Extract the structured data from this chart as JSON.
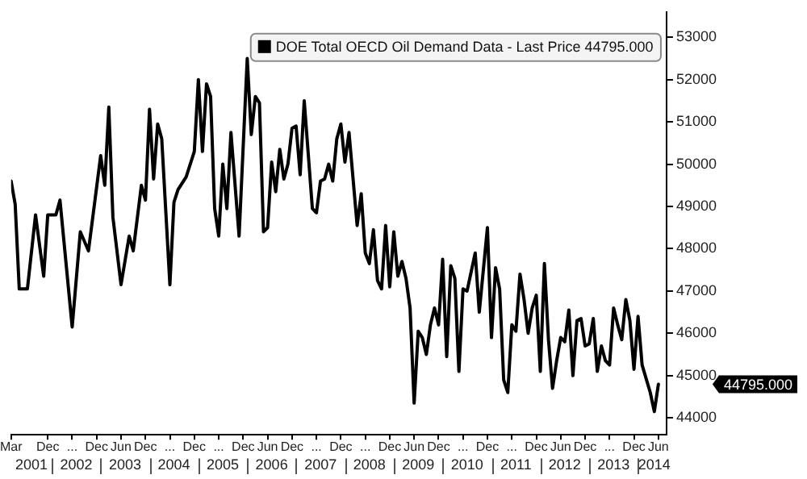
{
  "chart_data": {
    "type": "line",
    "x": [
      "2001-03",
      "2001-04",
      "2001-05",
      "2001-07",
      "2001-09",
      "2001-11",
      "2001-12",
      "2002-02",
      "2002-03",
      "2002-06",
      "2002-08",
      "2002-10",
      "2003-01",
      "2003-02",
      "2003-03",
      "2003-04",
      "2003-06",
      "2003-08",
      "2003-09",
      "2003-11",
      "2003-12",
      "2004-01",
      "2004-02",
      "2004-03",
      "2004-04",
      "2004-06",
      "2004-07",
      "2004-08",
      "2004-10",
      "2004-12",
      "2005-01",
      "2005-02",
      "2005-03",
      "2005-04",
      "2005-05",
      "2005-06",
      "2005-07",
      "2005-08",
      "2005-09",
      "2005-11",
      "2006-01",
      "2006-02",
      "2006-03",
      "2006-04",
      "2006-05",
      "2006-06",
      "2006-07",
      "2006-08",
      "2006-09",
      "2006-10",
      "2006-11",
      "2006-12",
      "2007-01",
      "2007-02",
      "2007-03",
      "2007-05",
      "2007-06",
      "2007-07",
      "2007-08",
      "2007-09",
      "2007-10",
      "2007-11",
      "2007-12",
      "2008-01",
      "2008-02",
      "2008-04",
      "2008-05",
      "2008-06",
      "2008-07",
      "2008-08",
      "2008-09",
      "2008-10",
      "2008-11",
      "2008-12",
      "2009-01",
      "2009-02",
      "2009-03",
      "2009-04",
      "2009-05",
      "2009-06",
      "2009-07",
      "2009-08",
      "2009-09",
      "2009-10",
      "2009-11",
      "2009-12",
      "2010-01",
      "2010-02",
      "2010-03",
      "2010-04",
      "2010-05",
      "2010-06",
      "2010-07",
      "2010-09",
      "2010-10",
      "2010-12",
      "2011-01",
      "2011-02",
      "2011-03",
      "2011-04",
      "2011-05",
      "2011-06",
      "2011-07",
      "2011-08",
      "2011-09",
      "2011-10",
      "2011-11",
      "2011-12",
      "2012-01",
      "2012-02",
      "2012-03",
      "2012-04",
      "2012-05",
      "2012-06",
      "2012-07",
      "2012-08",
      "2012-09",
      "2012-10",
      "2012-11",
      "2012-12",
      "2013-01",
      "2013-02",
      "2013-03",
      "2013-04",
      "2013-05",
      "2013-06",
      "2013-07",
      "2013-08",
      "2013-09",
      "2013-10",
      "2013-11",
      "2013-12",
      "2014-01",
      "2014-02",
      "2014-04",
      "2014-05",
      "2014-06"
    ],
    "series": [
      {
        "name": "DOE Total OECD Oil Demand Data - Last Price 44795.000",
        "color": "#000000",
        "values": [
          49600,
          49050,
          47050,
          47050,
          48800,
          47350,
          48800,
          48800,
          49150,
          46150,
          48400,
          47950,
          50200,
          49500,
          51350,
          48750,
          47150,
          48300,
          47950,
          49500,
          49150,
          51300,
          49650,
          50950,
          50600,
          47150,
          49100,
          49400,
          49700,
          50300,
          52000,
          50300,
          51900,
          51600,
          48950,
          48300,
          50000,
          48950,
          50750,
          48300,
          52500,
          50700,
          51600,
          51450,
          48400,
          48500,
          50050,
          49350,
          50350,
          49650,
          50000,
          50850,
          50900,
          49750,
          51500,
          48950,
          48850,
          49600,
          49650,
          50000,
          49600,
          50600,
          50950,
          50050,
          50750,
          48550,
          49300,
          47900,
          47650,
          48450,
          47250,
          47050,
          48550,
          47100,
          48400,
          47350,
          47700,
          47300,
          46600,
          44350,
          46050,
          45900,
          45500,
          46200,
          46600,
          46200,
          47750,
          45450,
          47600,
          47300,
          45100,
          47050,
          47000,
          47900,
          46500,
          48500,
          45900,
          47550,
          47050,
          44900,
          44600,
          46200,
          46050,
          47400,
          46800,
          46000,
          46600,
          46900,
          45100,
          47650,
          45850,
          44700,
          45350,
          45900,
          45800,
          46550,
          45000,
          46300,
          46350,
          45700,
          45750,
          46350,
          45100,
          45700,
          45350,
          45250,
          46600,
          46200,
          45850,
          46800,
          46300,
          45150,
          46400,
          45250,
          44600,
          44150,
          44795
        ]
      }
    ],
    "xlim": [
      "2001-03",
      "2014-08"
    ],
    "xticks": [
      {
        "value": "2001-03",
        "label": "Mar"
      },
      {
        "value": "2001-12",
        "label": "Dec"
      },
      {
        "value": "2002-06",
        "label": "..."
      },
      {
        "value": "2002-12",
        "label": "Dec"
      },
      {
        "value": "2003-06",
        "label": "Jun"
      },
      {
        "value": "2003-12",
        "label": "Dec"
      },
      {
        "value": "2004-06",
        "label": "..."
      },
      {
        "value": "2004-12",
        "label": "Dec"
      },
      {
        "value": "2005-06",
        "label": "..."
      },
      {
        "value": "2005-12",
        "label": "Dec"
      },
      {
        "value": "2006-06",
        "label": "Jun"
      },
      {
        "value": "2006-12",
        "label": "Dec"
      },
      {
        "value": "2007-06",
        "label": "..."
      },
      {
        "value": "2007-12",
        "label": "Dec"
      },
      {
        "value": "2008-06",
        "label": "..."
      },
      {
        "value": "2008-12",
        "label": "Dec"
      },
      {
        "value": "2009-06",
        "label": "Jun"
      },
      {
        "value": "2009-12",
        "label": "Dec"
      },
      {
        "value": "2010-06",
        "label": "..."
      },
      {
        "value": "2010-12",
        "label": "Dec"
      },
      {
        "value": "2011-06",
        "label": "..."
      },
      {
        "value": "2011-12",
        "label": "Dec"
      },
      {
        "value": "2012-06",
        "label": "Jun"
      },
      {
        "value": "2012-12",
        "label": "Dec"
      },
      {
        "value": "2013-06",
        "label": "..."
      },
      {
        "value": "2013-12",
        "label": "Dec"
      },
      {
        "value": "2014-06",
        "label": "Jun"
      }
    ],
    "x2ticks": [
      {
        "value": "2001-08",
        "label": "2001"
      },
      {
        "value": "2002-01",
        "label": null
      },
      {
        "value": "2002-07",
        "label": "2002"
      },
      {
        "value": "2003-01",
        "label": null
      },
      {
        "value": "2003-07",
        "label": "2003"
      },
      {
        "value": "2004-01",
        "label": null
      },
      {
        "value": "2004-07",
        "label": "2004"
      },
      {
        "value": "2005-01",
        "label": null
      },
      {
        "value": "2005-07",
        "label": "2005"
      },
      {
        "value": "2006-01",
        "label": null
      },
      {
        "value": "2006-07",
        "label": "2006"
      },
      {
        "value": "2007-01",
        "label": null
      },
      {
        "value": "2007-07",
        "label": "2007"
      },
      {
        "value": "2008-01",
        "label": null
      },
      {
        "value": "2008-07",
        "label": "2008"
      },
      {
        "value": "2009-01",
        "label": null
      },
      {
        "value": "2009-07",
        "label": "2009"
      },
      {
        "value": "2010-01",
        "label": null
      },
      {
        "value": "2010-07",
        "label": "2010"
      },
      {
        "value": "2011-01",
        "label": null
      },
      {
        "value": "2011-07",
        "label": "2011"
      },
      {
        "value": "2012-01",
        "label": null
      },
      {
        "value": "2012-07",
        "label": "2012"
      },
      {
        "value": "2013-01",
        "label": null
      },
      {
        "value": "2013-07",
        "label": "2013"
      },
      {
        "value": "2014-01",
        "label": null
      },
      {
        "value": "2014-05",
        "label": "2014"
      }
    ],
    "x2lim": [
      "2001-03",
      "2014-08"
    ],
    "ylim": [
      43600,
      53600
    ],
    "yticks": [
      44000,
      45000,
      46000,
      47000,
      48000,
      49000,
      50000,
      51000,
      52000,
      53000
    ],
    "annotations": [
      "44795.000"
    ],
    "grid": false,
    "legend": "top right"
  }
}
